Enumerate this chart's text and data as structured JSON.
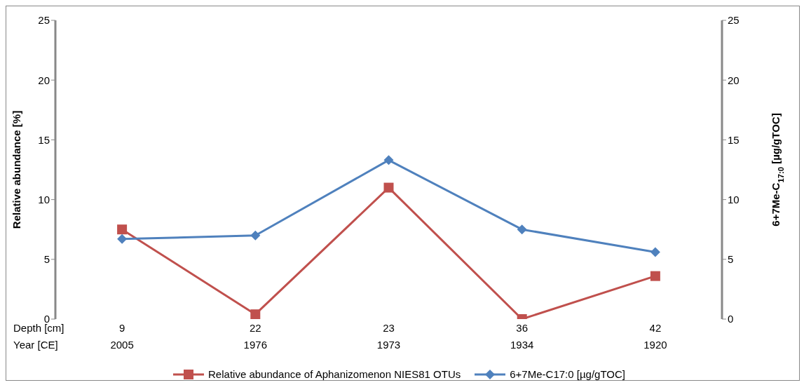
{
  "chart_data": {
    "type": "line",
    "categories": [
      "9\n2005",
      "22\n1976",
      "23\n1973",
      "36\n1934",
      "42\n1920"
    ],
    "annotations": [
      "Depth [cm]",
      "Year [CE]"
    ],
    "ylabel": "Relative abundance [%]",
    "y2label": "6+7Me-C$_{17:0}$ [µg/gTOC]",
    "ylim": [
      0,
      25
    ],
    "yticks": [
      0,
      5,
      10,
      15,
      20,
      25
    ],
    "y2lim": [
      0,
      25
    ],
    "y2ticks": [
      0,
      5,
      10,
      15,
      20,
      25
    ],
    "legend": "bottom",
    "line_style": "solid",
    "series": [
      {
        "name": "Relative abundance of Aphanizomenon NIES81 OTUs",
        "color": "#c0504d",
        "marker": "square",
        "values": [
          7.5,
          0.4,
          11,
          0,
          3.6
        ]
      },
      {
        "name": "6+7Me-C17:0 [µg/gTOC]",
        "color": "#4f81bd",
        "marker": "diamond",
        "axis": "y2",
        "values": [
          6.7,
          7.0,
          13.3,
          7.5,
          5.6
        ]
      }
    ]
  }
}
